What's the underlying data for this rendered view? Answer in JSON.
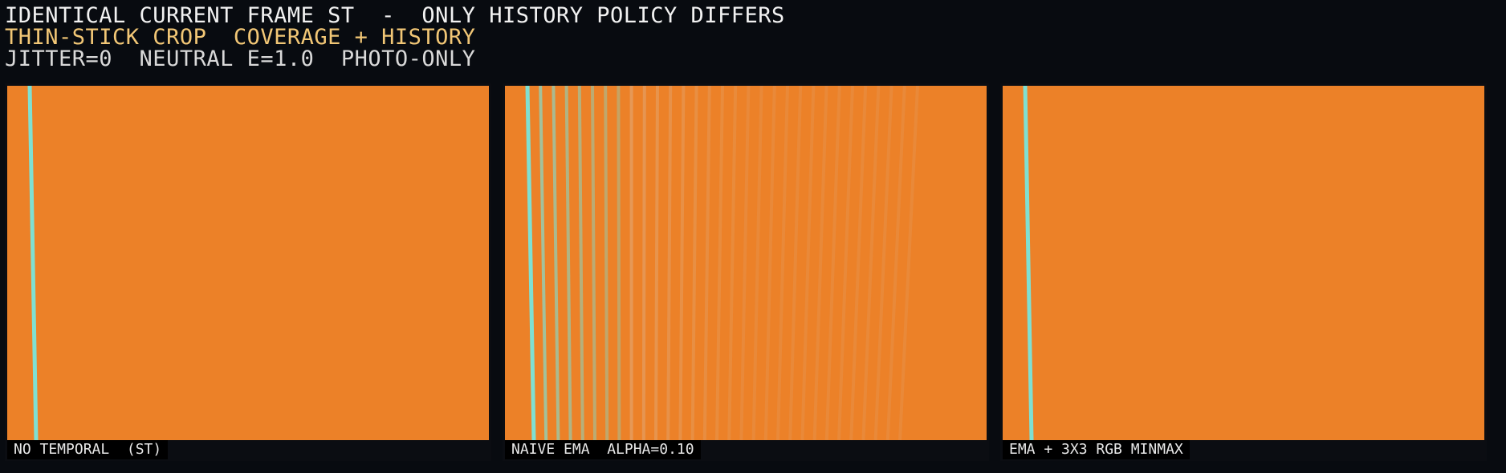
{
  "header": {
    "line1": "IDENTICAL CURRENT FRAME ST  -  ONLY HISTORY POLICY DIFFERS",
    "line2": "THIN-STICK CROP  COVERAGE + HISTORY",
    "line3": "JITTER=0  NEUTRAL E=1.0  PHOTO-ONLY"
  },
  "colors": {
    "background": "#080b10",
    "line1": "#f2f2f2",
    "line2": "#f2c776",
    "line3": "#d9d9d9",
    "scene_orange": "#ec8128",
    "stick_cyan": "#7fe0d2",
    "caption_bg": "#000000",
    "caption_text": "#e8e8e8"
  },
  "panels": [
    {
      "name": "no-temporal",
      "caption": "NO TEMPORAL  (ST)",
      "ghost_trails": 0
    },
    {
      "name": "naive-ema",
      "caption": "NAIVE EMA  ALPHA=0.10",
      "ghost_trails": 30
    },
    {
      "name": "ema-rgb-minmax",
      "caption": "EMA + 3X3 RGB MINMAX",
      "ghost_trails": 0
    }
  ]
}
